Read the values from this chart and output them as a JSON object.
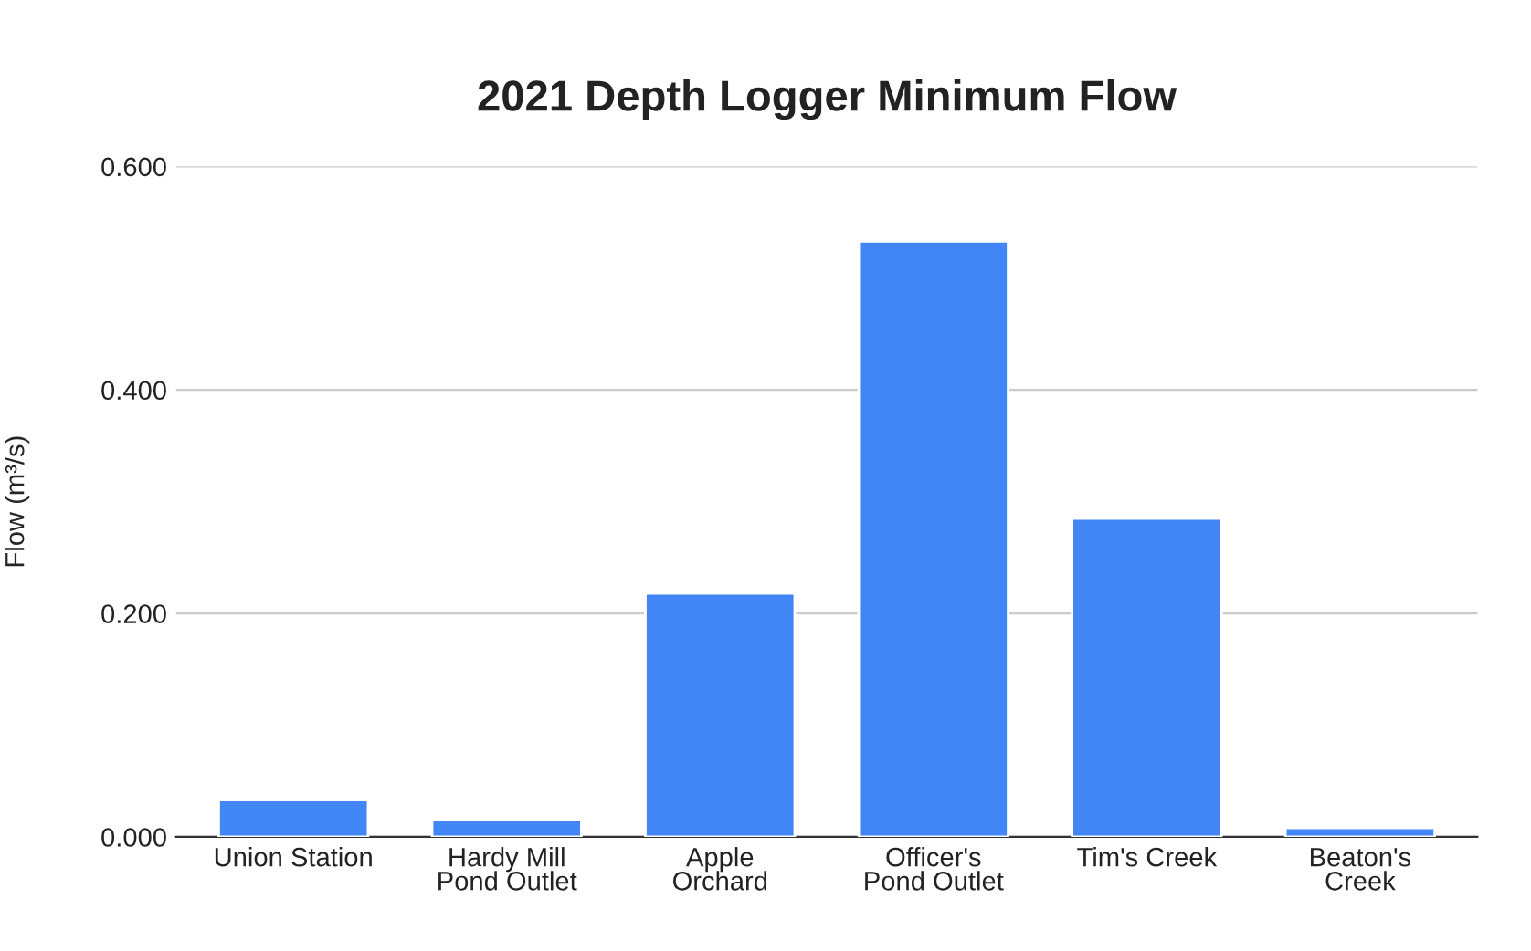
{
  "chart_data": {
    "type": "bar",
    "title": "2021 Depth Logger Minimum Flow",
    "ylabel": "Flow (m³/s)",
    "categories": [
      "Union Station",
      "Hardy Mill\nPond Outlet",
      "Apple\nOrchard",
      "Officer's\nPond Outlet",
      "Tim's Creek",
      "Beaton's\nCreek"
    ],
    "values": [
      0.033,
      0.015,
      0.218,
      0.533,
      0.285,
      0.008
    ],
    "color": "#4285f4",
    "ylim": [
      0,
      0.6
    ],
    "yticks": [
      {
        "value": 0,
        "label": "0.000"
      },
      {
        "value": 0.2,
        "label": "0.200"
      },
      {
        "value": 0.4,
        "label": "0.400"
      },
      {
        "value": 0.6,
        "label": "0.600"
      }
    ],
    "grid": "y",
    "legend": false
  }
}
